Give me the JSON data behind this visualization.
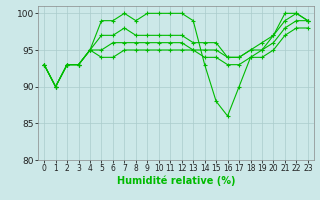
{
  "xlabel": "Humidité relative (%)",
  "background_color": "#cce8e8",
  "grid_color": "#aacccc",
  "line_color": "#00bb00",
  "ylim": [
    80,
    101
  ],
  "xlim": [
    -0.5,
    23.5
  ],
  "yticks": [
    80,
    85,
    90,
    95,
    100
  ],
  "xticks": [
    0,
    1,
    2,
    3,
    4,
    5,
    6,
    7,
    8,
    9,
    10,
    11,
    12,
    13,
    14,
    15,
    16,
    17,
    18,
    19,
    20,
    21,
    22,
    23
  ],
  "series": [
    [
      93,
      90,
      93,
      93,
      95,
      99,
      99,
      100,
      99,
      100,
      100,
      100,
      100,
      99,
      93,
      88,
      86,
      90,
      94,
      95,
      97,
      100,
      100,
      99
    ],
    [
      93,
      90,
      93,
      93,
      95,
      97,
      97,
      98,
      97,
      97,
      97,
      97,
      97,
      96,
      96,
      96,
      94,
      94,
      95,
      96,
      97,
      99,
      100,
      99
    ],
    [
      93,
      90,
      93,
      93,
      95,
      95,
      96,
      96,
      96,
      96,
      96,
      96,
      96,
      95,
      95,
      95,
      94,
      94,
      95,
      95,
      96,
      98,
      99,
      99
    ],
    [
      93,
      90,
      93,
      93,
      95,
      94,
      94,
      95,
      95,
      95,
      95,
      95,
      95,
      95,
      94,
      94,
      93,
      93,
      94,
      94,
      95,
      97,
      98,
      98
    ]
  ]
}
